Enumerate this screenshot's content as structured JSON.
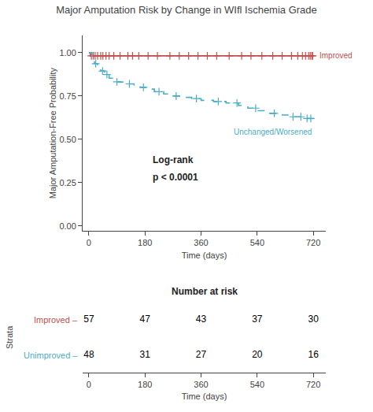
{
  "chart_data": [
    {
      "type": "step",
      "title": "Major Amputation Risk by Change in WIfl Ischemia Grade",
      "xlabel": "Time (days)",
      "ylabel": "Major Amputation-Free Probability",
      "xlim": [
        -20,
        760
      ],
      "ylim": [
        -0.03,
        1.1
      ],
      "xticks": [
        0,
        180,
        360,
        540,
        720
      ],
      "yticks": [
        {
          "value": 0.0,
          "label": "0.00"
        },
        {
          "value": 0.25,
          "label": "0.25"
        },
        {
          "value": 0.5,
          "label": "0.50"
        },
        {
          "value": 0.75,
          "label": "0.75"
        },
        {
          "value": 1.0,
          "label": "1.00"
        }
      ],
      "grid": false,
      "annotations": [
        "Log-rank",
        "p < 0.0001"
      ],
      "series": [
        {
          "name": "Improved",
          "color": "#c0504d",
          "line_style": "solid",
          "x": [
            0,
            5,
            10,
            18,
            25,
            35,
            50,
            70,
            90,
            120,
            150,
            180,
            240,
            300,
            360,
            420,
            480,
            540,
            600,
            660,
            720
          ],
          "values": [
            1.0,
            0.982,
            0.982,
            0.982,
            0.982,
            0.982,
            0.982,
            0.982,
            0.982,
            0.982,
            0.982,
            0.982,
            0.982,
            0.982,
            0.982,
            0.982,
            0.982,
            0.982,
            0.982,
            0.982,
            0.982
          ],
          "censored_x": [
            8,
            14,
            20,
            28,
            38,
            45,
            55,
            65,
            80,
            100,
            125,
            140,
            160,
            190,
            220,
            260,
            290,
            320,
            350,
            380,
            410,
            450,
            490,
            520,
            555,
            590,
            620,
            650,
            670,
            685,
            695,
            705,
            710,
            715,
            718
          ],
          "censored_values": [
            0.982,
            0.982,
            0.982,
            0.982,
            0.982,
            0.982,
            0.982,
            0.982,
            0.982,
            0.982,
            0.982,
            0.982,
            0.982,
            0.982,
            0.982,
            0.982,
            0.982,
            0.982,
            0.982,
            0.982,
            0.982,
            0.982,
            0.982,
            0.982,
            0.982,
            0.982,
            0.982,
            0.982,
            0.982,
            0.982,
            0.982,
            0.982,
            0.982,
            0.982,
            0.982
          ]
        },
        {
          "name": "Unchanged/Worsened",
          "color": "#4bacc6",
          "line_style": "dashed",
          "x": [
            0,
            10,
            18,
            28,
            38,
            50,
            65,
            80,
            100,
            120,
            145,
            165,
            185,
            210,
            240,
            270,
            300,
            330,
            360,
            400,
            440,
            480,
            510,
            540,
            570,
            610,
            650,
            690,
            720
          ],
          "values": [
            1.0,
            0.958,
            0.937,
            0.916,
            0.895,
            0.874,
            0.853,
            0.832,
            0.831,
            0.82,
            0.81,
            0.8,
            0.79,
            0.775,
            0.762,
            0.75,
            0.742,
            0.735,
            0.725,
            0.718,
            0.71,
            0.695,
            0.68,
            0.665,
            0.65,
            0.64,
            0.63,
            0.62,
            0.615
          ],
          "censored_x": [
            22,
            44,
            58,
            90,
            130,
            175,
            225,
            280,
            345,
            415,
            475,
            535,
            595,
            655,
            680,
            700,
            712
          ],
          "censored_values": [
            0.937,
            0.895,
            0.874,
            0.832,
            0.82,
            0.8,
            0.775,
            0.75,
            0.735,
            0.718,
            0.71,
            0.68,
            0.65,
            0.63,
            0.63,
            0.62,
            0.62
          ]
        }
      ]
    },
    {
      "type": "table",
      "title": "Number at risk",
      "xlabel": "Time (days)",
      "ylabel": "Strata",
      "xlim": [
        -20,
        760
      ],
      "xticks": [
        0,
        180,
        360,
        540,
        720
      ],
      "grid": false,
      "data_labels": true,
      "x": [
        0,
        180,
        360,
        540,
        720
      ],
      "series": [
        {
          "name": "Improved –",
          "color": "#c0504d",
          "values": [
            57,
            47,
            43,
            37,
            30
          ]
        },
        {
          "name": "Unimproved –",
          "color": "#4bacc6",
          "values": [
            48,
            31,
            27,
            20,
            16
          ]
        }
      ]
    }
  ]
}
